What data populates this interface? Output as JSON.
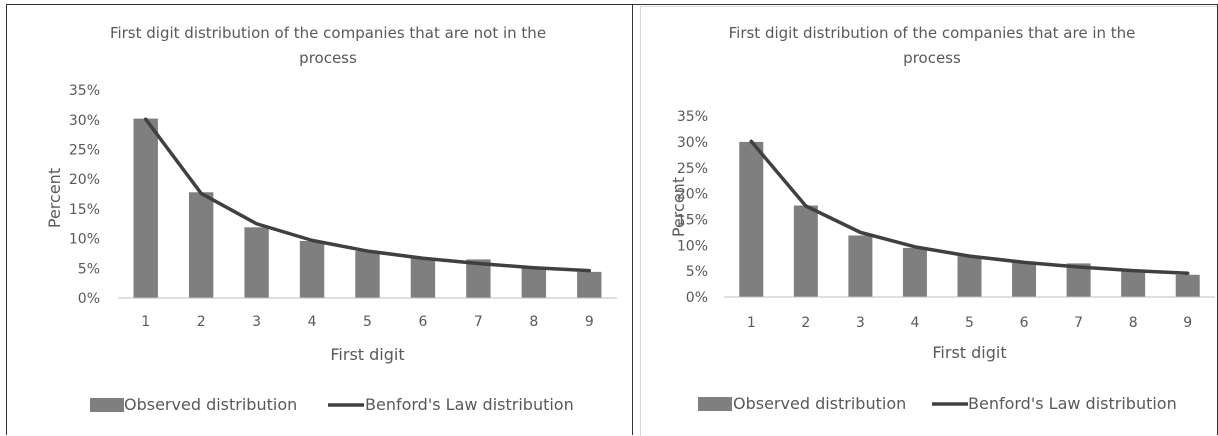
{
  "colors": {
    "bar": "#7f7f7f",
    "line": "#404040",
    "axis": "#bfbfbf",
    "text": "#595959"
  },
  "chart_data": [
    {
      "type": "bar",
      "title": "First digit distribution of the companies that are not in the process",
      "title_lines": [
        "First digit distribution of the companies that are not in the",
        "process"
      ],
      "xlabel": "First digit",
      "ylabel": "Percent",
      "categories": [
        "1",
        "2",
        "3",
        "4",
        "5",
        "6",
        "7",
        "8",
        "9"
      ],
      "yticks": [
        "0%",
        "5%",
        "10%",
        "15%",
        "20%",
        "25%",
        "30%",
        "35%"
      ],
      "ylim": [
        0,
        35
      ],
      "legend_position": "bottom",
      "grid": false,
      "series": [
        {
          "name": "Observed distribution",
          "type": "bar",
          "values": [
            30.2,
            17.8,
            11.9,
            9.6,
            7.9,
            6.7,
            6.5,
            5.1,
            4.4
          ]
        },
        {
          "name": "Benford's Law distribution",
          "type": "line",
          "values": [
            30.1,
            17.6,
            12.5,
            9.7,
            7.9,
            6.7,
            5.8,
            5.1,
            4.6
          ]
        }
      ]
    },
    {
      "type": "bar",
      "title": "First digit distribution of the companies that are in the process",
      "title_lines": [
        "First digit distribution of the companies that are in the",
        "process"
      ],
      "xlabel": "First digit",
      "ylabel": "Percent",
      "categories": [
        "1",
        "2",
        "3",
        "4",
        "5",
        "6",
        "7",
        "8",
        "9"
      ],
      "yticks": [
        "0%",
        "5%",
        "10%",
        "15%",
        "20%",
        "25%",
        "30%",
        "35%"
      ],
      "ylim": [
        0,
        35
      ],
      "legend_position": "bottom",
      "grid": false,
      "series": [
        {
          "name": "Observed distribution",
          "type": "bar",
          "values": [
            30.0,
            17.7,
            11.9,
            9.5,
            7.9,
            6.6,
            6.5,
            5.0,
            4.3
          ]
        },
        {
          "name": "Benford's Law distribution",
          "type": "line",
          "values": [
            30.1,
            17.6,
            12.5,
            9.7,
            7.9,
            6.7,
            5.8,
            5.1,
            4.6
          ]
        }
      ]
    }
  ]
}
